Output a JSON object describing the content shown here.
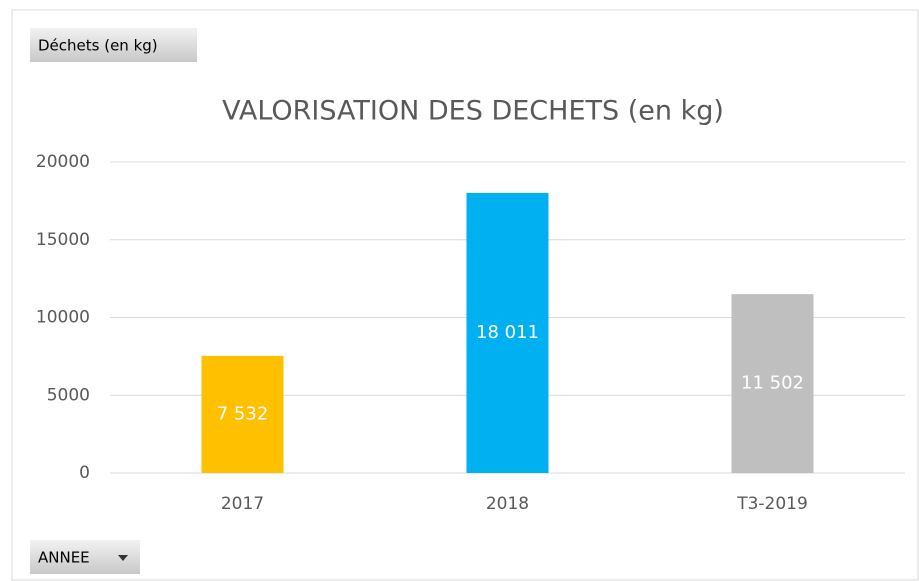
{
  "chart_data": {
    "type": "bar",
    "title": "VALORISATION DES DECHETS (en kg)",
    "value_field_button": "Déchets (en kg)",
    "axis_field_button": "ANNEE",
    "categories": [
      "2017",
      "2018",
      "T3-2019"
    ],
    "values": [
      7532,
      18011,
      11502
    ],
    "value_labels": [
      "7 532",
      "18 011",
      "11 502"
    ],
    "colors": [
      "#FFC000",
      "#00B0F0",
      "#BFBFBF"
    ],
    "ylim": [
      0,
      20000
    ],
    "yticks": [
      0,
      5000,
      10000,
      15000,
      20000
    ],
    "grid": true
  }
}
